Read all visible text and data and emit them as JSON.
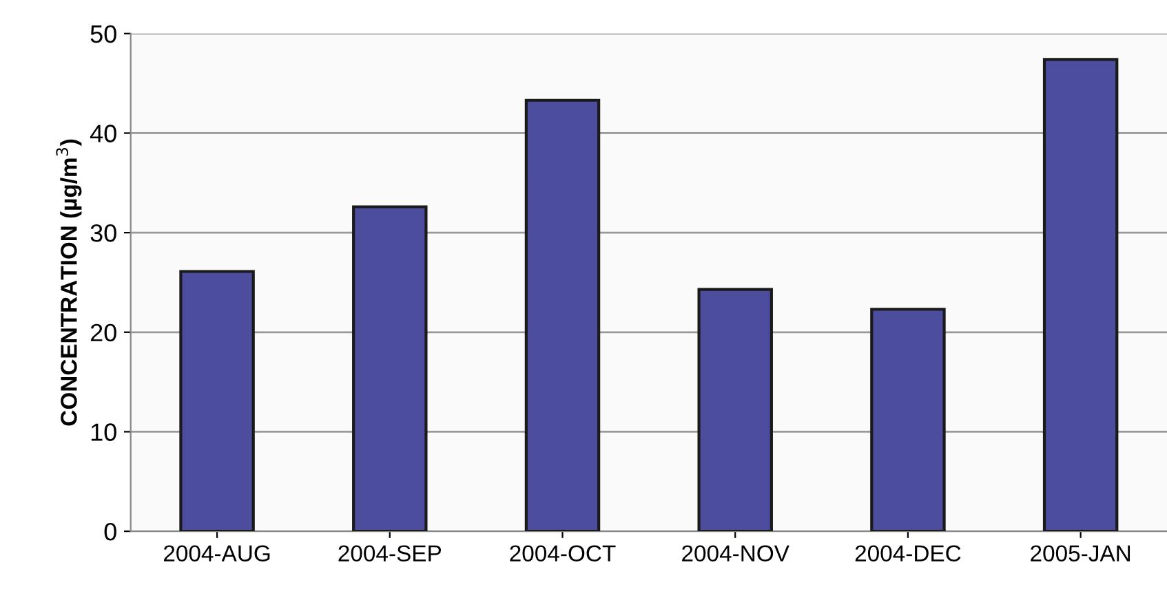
{
  "chart_data": {
    "type": "bar",
    "ylabel": "CONCENTRATION (µg/m$^{3}$)",
    "categories": [
      "2004-AUG",
      "2004-SEP",
      "2004-OCT",
      "2004-NOV",
      "2004-DEC",
      "2005-JAN"
    ],
    "values": [
      26.1,
      32.6,
      43.3,
      24.3,
      22.3,
      47.4
    ],
    "color": "#4d4d9e",
    "ylim": [
      0,
      50
    ],
    "yticks": [
      0,
      10,
      20,
      30,
      40,
      50
    ],
    "grid": "y"
  }
}
